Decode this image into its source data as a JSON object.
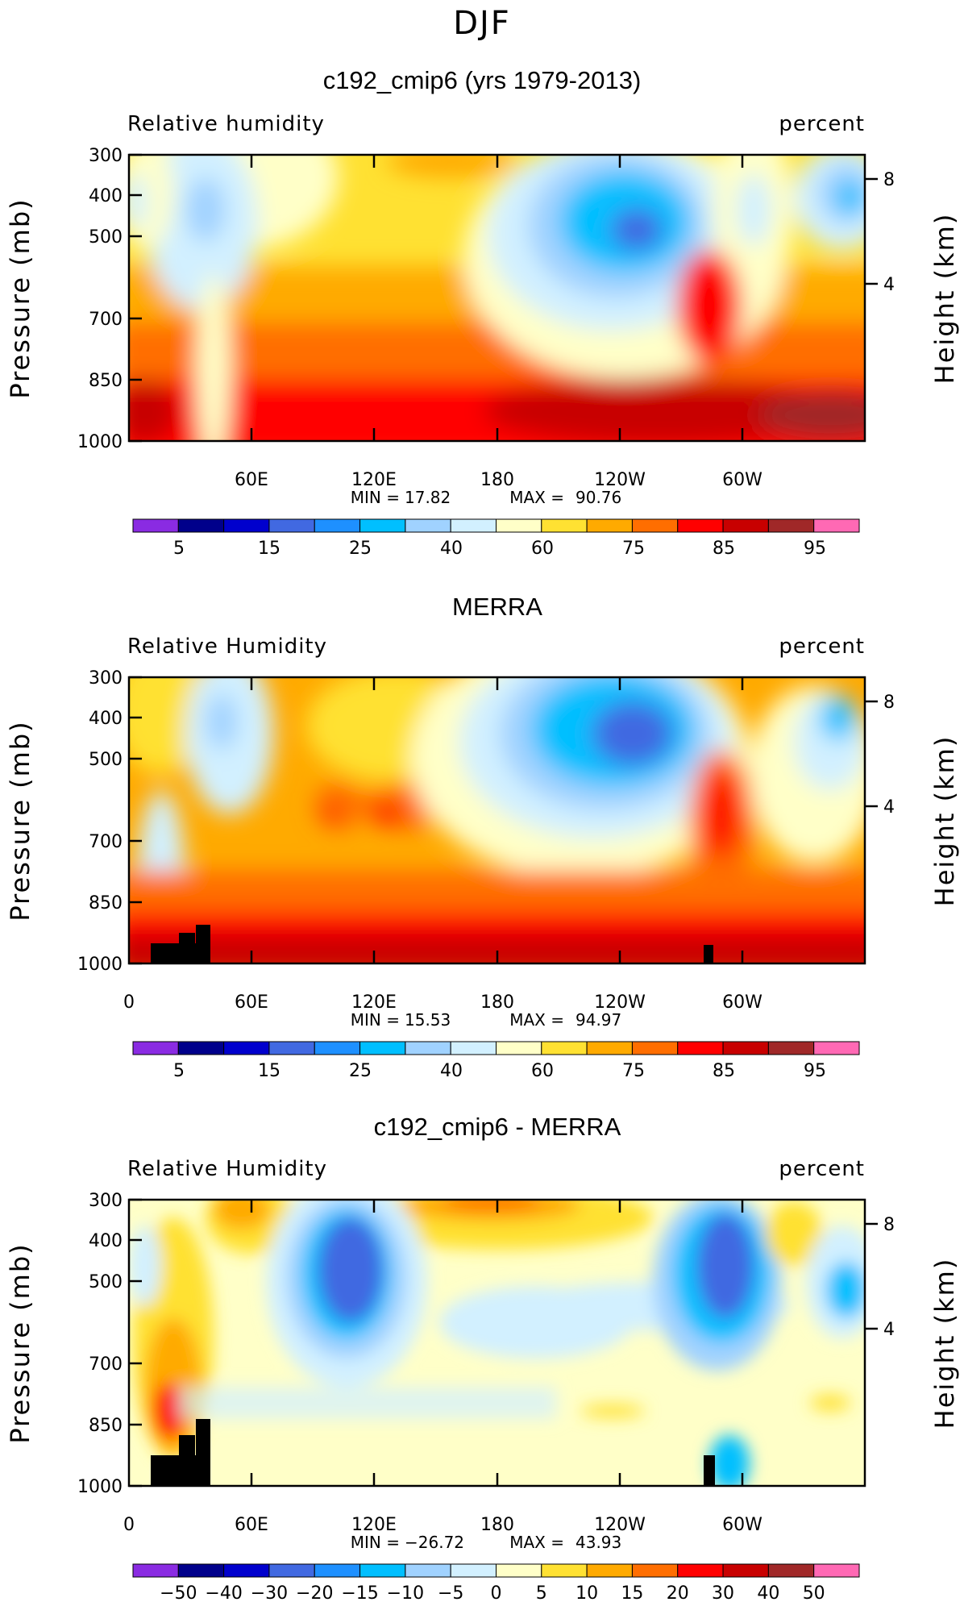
{
  "figure_title": "DJF",
  "chart_data": [
    {
      "type": "heatmap",
      "title": "c192_cmip6 (yrs 1979-2013)",
      "left_label": "Relative humidity",
      "right_label": "percent",
      "ylabel": "Pressure (mb)",
      "y2label": "Height (km)",
      "yticks": [
        "300",
        "400",
        "500",
        "700",
        "850",
        "1000"
      ],
      "y2ticks": [
        "8",
        "4"
      ],
      "xticks": [
        "60E",
        "120E",
        "180",
        "120W",
        "60W"
      ],
      "stats": {
        "min_label": "MIN =",
        "min": "17.82",
        "max_label": "MAX =",
        "max": "90.76"
      },
      "colorbar_labels": [
        "5",
        "15",
        "25",
        "40",
        "60",
        "75",
        "85",
        "95"
      ],
      "xlim": [
        0,
        360
      ],
      "ylim": [
        1000,
        300
      ]
    },
    {
      "type": "heatmap",
      "title": "MERRA",
      "left_label": "Relative Humidity",
      "right_label": "percent",
      "ylabel": "Pressure (mb)",
      "y2label": "Height (km)",
      "yticks": [
        "300",
        "400",
        "500",
        "700",
        "850",
        "1000"
      ],
      "y2ticks": [
        "8",
        "4"
      ],
      "xticks": [
        "0",
        "60E",
        "120E",
        "180",
        "120W",
        "60W"
      ],
      "stats": {
        "min_label": "MIN =",
        "min": "15.53",
        "max_label": "MAX =",
        "max": "94.97"
      },
      "colorbar_labels": [
        "5",
        "15",
        "25",
        "40",
        "60",
        "75",
        "85",
        "95"
      ],
      "xlim": [
        0,
        360
      ],
      "ylim": [
        1000,
        300
      ]
    },
    {
      "type": "heatmap",
      "title": "c192_cmip6 - MERRA",
      "left_label": "Relative Humidity",
      "right_label": "percent",
      "ylabel": "Pressure (mb)",
      "y2label": "Height (km)",
      "yticks": [
        "300",
        "400",
        "500",
        "700",
        "850",
        "1000"
      ],
      "y2ticks": [
        "8",
        "4"
      ],
      "xticks": [
        "0",
        "60E",
        "120E",
        "180",
        "120W",
        "60W"
      ],
      "stats": {
        "min_label": "MIN =",
        "min": "−26.72",
        "max_label": "MAX =",
        "max": "43.93"
      },
      "colorbar_labels": [
        "−50",
        "−40",
        "−30",
        "−20",
        "−15",
        "−10",
        "−5",
        "0",
        "5",
        "10",
        "15",
        "20",
        "30",
        "40",
        "50"
      ],
      "xlim": [
        0,
        360
      ],
      "ylim": [
        1000,
        300
      ]
    }
  ],
  "colorbar_colors": [
    "#8a2be2",
    "#00008b",
    "#0000cd",
    "#4169e1",
    "#1e90ff",
    "#00bfff",
    "#a0d2ff",
    "#d2f0ff",
    "#ffffc8",
    "#ffe132",
    "#ffaa00",
    "#ff6e00",
    "#ff0000",
    "#c80000",
    "#a02828",
    "#ff69b4"
  ]
}
